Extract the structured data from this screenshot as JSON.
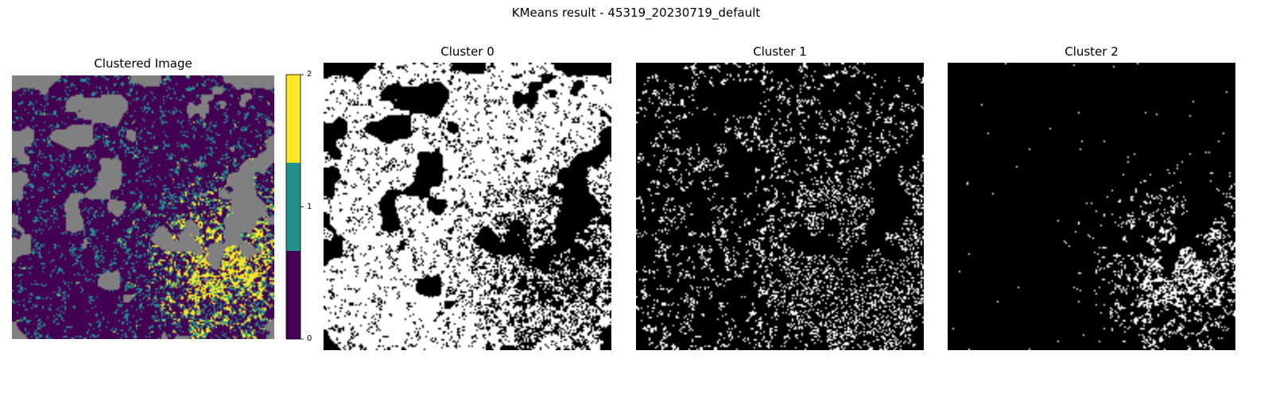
{
  "figure": {
    "suptitle": "KMeans result - 45319_20230719_default"
  },
  "chart_data": [
    {
      "type": "heatmap",
      "title": "Clustered Image",
      "classes": [
        0,
        1,
        2
      ],
      "legend": "right",
      "colorbar": {
        "ticks": [
          "0",
          "1",
          "2"
        ],
        "colors": [
          "#440154",
          "#21918c",
          "#fde725"
        ],
        "range": [
          0,
          2
        ]
      },
      "masked_color": "#808080",
      "grid": false
    },
    {
      "type": "heatmap",
      "title": "Cluster 0",
      "classes": [
        0,
        1
      ],
      "colors": [
        "#000000",
        "#ffffff"
      ],
      "grid": false
    },
    {
      "type": "heatmap",
      "title": "Cluster 1",
      "classes": [
        0,
        1
      ],
      "colors": [
        "#000000",
        "#ffffff"
      ],
      "grid": false
    },
    {
      "type": "heatmap",
      "title": "Cluster 2",
      "classes": [
        0,
        1
      ],
      "colors": [
        "#000000",
        "#ffffff"
      ],
      "grid": false
    }
  ]
}
